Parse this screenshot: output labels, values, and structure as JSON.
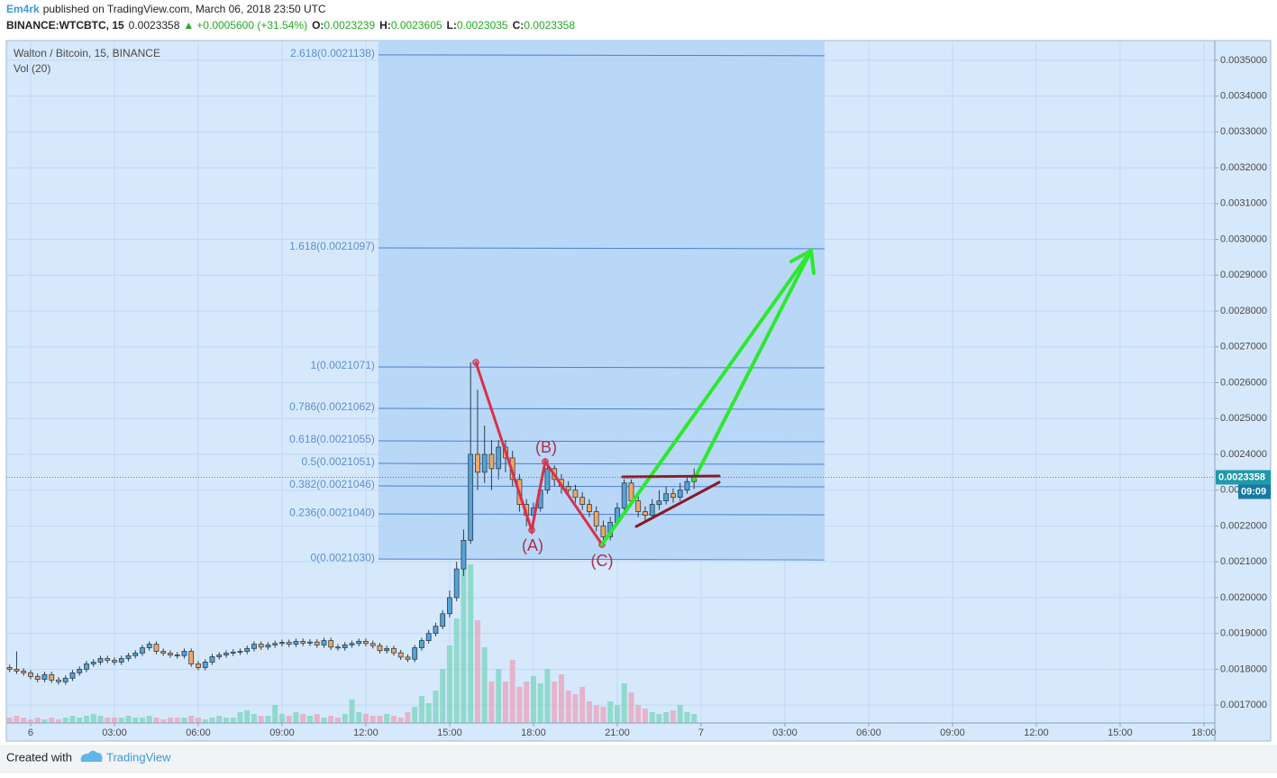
{
  "header": {
    "author": "Em4rk",
    "published": "published on TradingView.com, March 06, 2018 23:50 UTC",
    "symbol": "BINANCE:WTCBTC, 15",
    "last": "0.0023358",
    "change": "+0.0005600 (+31.54%)",
    "ohlc": [
      {
        "label": "O:",
        "value": "0.0023239"
      },
      {
        "label": "H:",
        "value": "0.0023605"
      },
      {
        "label": "L:",
        "value": "0.0023035"
      },
      {
        "label": "C:",
        "value": "0.0023358"
      }
    ]
  },
  "footer": {
    "created": "Created with",
    "brand": "TradingView"
  },
  "chart_data": {
    "type": "candlestick",
    "title": "Walton / Bitcoin, 15, BINANCE",
    "volume_label": "Vol (20)",
    "up_color": "#53a3d9",
    "down_color": "#f0a860",
    "volume_up_color": "#7fd4c1",
    "volume_down_color": "#eaa6bd",
    "x": [
      -0.75,
      -0.5,
      -0.25,
      0,
      0.25,
      0.5,
      0.75,
      1,
      1.25,
      1.5,
      1.75,
      2,
      2.25,
      2.5,
      2.75,
      3,
      3.25,
      3.5,
      3.75,
      4,
      4.25,
      4.5,
      4.75,
      5,
      5.25,
      5.5,
      5.75,
      6,
      6.25,
      6.5,
      6.75,
      7,
      7.25,
      7.5,
      7.75,
      8,
      8.25,
      8.5,
      8.75,
      9,
      9.25,
      9.5,
      9.75,
      10,
      10.25,
      10.5,
      10.75,
      11,
      11.25,
      11.5,
      11.75,
      12,
      12.25,
      12.5,
      12.75,
      13,
      13.25,
      13.5,
      13.75,
      14,
      14.25,
      14.5,
      14.75,
      15,
      15.25,
      15.5,
      15.75,
      16,
      16.25,
      16.5,
      16.75,
      17,
      17.25,
      17.5,
      17.75,
      18,
      18.25,
      18.5,
      18.75,
      19,
      19.25,
      19.5,
      19.75,
      20,
      20.25,
      20.5,
      20.75,
      21,
      21.25,
      21.5,
      21.75,
      22,
      22.25,
      22.5,
      22.75,
      23,
      23.25,
      23.5,
      23.75
    ],
    "open": [
      0.001805,
      0.0018,
      0.001795,
      0.00179,
      0.00178,
      0.001772,
      0.001785,
      0.00177,
      0.001765,
      0.001775,
      0.00179,
      0.0018,
      0.001815,
      0.00182,
      0.00183,
      0.001825,
      0.00182,
      0.00183,
      0.001838,
      0.001845,
      0.00186,
      0.00187,
      0.00185,
      0.001845,
      0.00184,
      0.001838,
      0.00185,
      0.001815,
      0.001805,
      0.00182,
      0.001835,
      0.00184,
      0.001845,
      0.001848,
      0.00185,
      0.001858,
      0.00187,
      0.001862,
      0.001868,
      0.001872,
      0.001875,
      0.00187,
      0.001878,
      0.001873,
      0.001876,
      0.001868,
      0.00188,
      0.001862,
      0.00186,
      0.001868,
      0.001872,
      0.001878,
      0.001872,
      0.001866,
      0.001852,
      0.001858,
      0.001846,
      0.001834,
      0.001828,
      0.00186,
      0.00188,
      0.0019,
      0.00192,
      0.001955,
      0.002,
      0.00208,
      0.00216,
      0.0024,
      0.00235,
      0.0024,
      0.00236,
      0.00242,
      0.00239,
      0.00233,
      0.00226,
      0.00223,
      0.00225,
      0.0023,
      0.00236,
      0.00233,
      0.00231,
      0.0023,
      0.00228,
      0.00226,
      0.00224,
      0.0022,
      0.00217,
      0.00221,
      0.00225,
      0.00232,
      0.00227,
      0.00224,
      0.00223,
      0.00226,
      0.00227,
      0.00229,
      0.00228,
      0.0023,
      0.0023239
    ],
    "high": [
      0.001813,
      0.00185,
      0.001803,
      0.001798,
      0.001788,
      0.001793,
      0.001793,
      0.001778,
      0.001783,
      0.001798,
      0.001808,
      0.001823,
      0.001828,
      0.001838,
      0.001838,
      0.001833,
      0.001838,
      0.001846,
      0.001853,
      0.001868,
      0.001878,
      0.001878,
      0.001858,
      0.001853,
      0.001848,
      0.001858,
      0.001858,
      0.001823,
      0.001828,
      0.001843,
      0.001848,
      0.001853,
      0.001856,
      0.001858,
      0.001866,
      0.001878,
      0.001878,
      0.001876,
      0.00188,
      0.001883,
      0.001883,
      0.001886,
      0.001886,
      0.001884,
      0.001884,
      0.001888,
      0.001888,
      0.00187,
      0.001876,
      0.00188,
      0.001886,
      0.001886,
      0.00188,
      0.001874,
      0.001866,
      0.001866,
      0.001854,
      0.001842,
      0.001868,
      0.001888,
      0.00191,
      0.00193,
      0.001965,
      0.00202,
      0.0021,
      0.00219,
      0.002657,
      0.00258,
      0.00248,
      0.00244,
      0.00244,
      0.00244,
      0.00241,
      0.002345,
      0.002275,
      0.002265,
      0.002315,
      0.00238,
      0.00237,
      0.002345,
      0.002325,
      0.002315,
      0.002295,
      0.002275,
      0.002255,
      0.002215,
      0.002225,
      0.002265,
      0.00233,
      0.00233,
      0.002285,
      0.002255,
      0.002275,
      0.0023,
      0.00231,
      0.002305,
      0.00232,
      0.002335,
      0.0023605
    ],
    "low": [
      0.001792,
      0.001787,
      0.001782,
      0.001772,
      0.001764,
      0.001764,
      0.001762,
      0.001757,
      0.001757,
      0.001767,
      0.001782,
      0.001792,
      0.001807,
      0.001812,
      0.001817,
      0.001812,
      0.001812,
      0.001822,
      0.00183,
      0.001837,
      0.001852,
      0.001842,
      0.001837,
      0.001832,
      0.00183,
      0.00183,
      0.001807,
      0.001797,
      0.001797,
      0.001812,
      0.001827,
      0.001832,
      0.001837,
      0.00184,
      0.001842,
      0.00185,
      0.001854,
      0.001854,
      0.00186,
      0.001864,
      0.001862,
      0.001862,
      0.001865,
      0.001865,
      0.00186,
      0.00186,
      0.001854,
      0.001852,
      0.001852,
      0.00186,
      0.001864,
      0.001864,
      0.001858,
      0.001844,
      0.001844,
      0.001838,
      0.001826,
      0.00182,
      0.00182,
      0.001852,
      0.001872,
      0.001892,
      0.001912,
      0.001945,
      0.00199,
      0.00206,
      0.00215,
      0.0023,
      0.00232,
      0.0023,
      0.00233,
      0.00235,
      0.00231,
      0.00224,
      0.0022,
      0.00219,
      0.00224,
      0.00229,
      0.00231,
      0.00229,
      0.002285,
      0.002265,
      0.002245,
      0.002225,
      0.002185,
      0.00215,
      0.00216,
      0.0022,
      0.00224,
      0.002255,
      0.002225,
      0.002215,
      0.00222,
      0.002245,
      0.00226,
      0.002265,
      0.00227,
      0.00229,
      0.0023035
    ],
    "close": [
      0.0018,
      0.001795,
      0.00179,
      0.00178,
      0.001772,
      0.001785,
      0.00177,
      0.001765,
      0.001775,
      0.00179,
      0.0018,
      0.001815,
      0.00182,
      0.00183,
      0.001825,
      0.00182,
      0.00183,
      0.001838,
      0.001845,
      0.00186,
      0.00187,
      0.00185,
      0.001845,
      0.00184,
      0.001838,
      0.00185,
      0.001815,
      0.001805,
      0.00182,
      0.001835,
      0.00184,
      0.001845,
      0.001848,
      0.00185,
      0.001858,
      0.00187,
      0.001862,
      0.001868,
      0.001872,
      0.001875,
      0.00187,
      0.001878,
      0.001873,
      0.001876,
      0.001868,
      0.00188,
      0.001862,
      0.00186,
      0.001868,
      0.001872,
      0.001878,
      0.001872,
      0.001866,
      0.001852,
      0.001858,
      0.001846,
      0.001834,
      0.001828,
      0.00186,
      0.00188,
      0.0019,
      0.00192,
      0.001955,
      0.002,
      0.00208,
      0.00216,
      0.0024,
      0.00235,
      0.0024,
      0.00236,
      0.00242,
      0.00239,
      0.00233,
      0.00226,
      0.00223,
      0.00225,
      0.0023,
      0.00236,
      0.00233,
      0.00231,
      0.0023,
      0.00228,
      0.00226,
      0.00224,
      0.0022,
      0.00217,
      0.00221,
      0.00225,
      0.00232,
      0.00227,
      0.00224,
      0.00223,
      0.00226,
      0.00227,
      0.00229,
      0.00228,
      0.0023,
      0.0023239,
      0.0023358
    ],
    "volume": [
      3,
      4,
      3,
      2,
      3,
      2,
      3,
      2,
      3,
      4,
      3,
      4,
      5,
      4,
      3,
      3,
      3,
      4,
      3,
      3,
      4,
      3,
      2,
      3,
      3,
      3,
      4,
      3,
      2,
      3,
      4,
      3,
      3,
      6,
      7,
      5,
      4,
      4,
      10,
      5,
      4,
      6,
      5,
      4,
      5,
      3,
      4,
      3,
      5,
      13,
      6,
      5,
      4,
      4,
      5,
      4,
      3,
      6,
      9,
      15,
      11,
      18,
      30,
      43,
      58,
      95,
      88,
      57,
      42,
      23,
      30,
      23,
      35,
      20,
      23,
      26,
      22,
      30,
      23,
      27,
      18,
      16,
      20,
      12,
      10,
      9,
      12,
      10,
      22,
      17,
      10,
      8,
      6,
      5,
      6,
      7,
      10,
      6,
      5
    ],
    "xlim": [
      -0.87,
      42.39
    ],
    "xticks": [
      {
        "value": 0,
        "label": "6"
      },
      {
        "value": 3,
        "label": "03:00"
      },
      {
        "value": 6,
        "label": "06:00"
      },
      {
        "value": 9,
        "label": "09:00"
      },
      {
        "value": 12,
        "label": "12:00"
      },
      {
        "value": 15,
        "label": "15:00"
      },
      {
        "value": 18,
        "label": "18:00"
      },
      {
        "value": 21,
        "label": "21:00"
      },
      {
        "value": 24,
        "label": "7"
      },
      {
        "value": 27,
        "label": "03:00"
      },
      {
        "value": 30,
        "label": "06:00"
      },
      {
        "value": 33,
        "label": "09:00"
      },
      {
        "value": 36,
        "label": "12:00"
      },
      {
        "value": 39,
        "label": "15:00"
      },
      {
        "value": 42,
        "label": "18:00"
      }
    ],
    "ylim": [
      0.00165,
      0.003555
    ],
    "yticks": [
      {
        "value": 0.0017,
        "label": "0.0017000"
      },
      {
        "value": 0.0018,
        "label": "0.0018000"
      },
      {
        "value": 0.0019,
        "label": "0.0019000"
      },
      {
        "value": 0.002,
        "label": "0.0020000"
      },
      {
        "value": 0.0021,
        "label": "0.0021000"
      },
      {
        "value": 0.0022,
        "label": "0.0022000"
      },
      {
        "value": 0.0023,
        "label": "0.0023000"
      },
      {
        "value": 0.0024,
        "label": "0.0024000"
      },
      {
        "value": 0.0025,
        "label": "0.0025000"
      },
      {
        "value": 0.0026,
        "label": "0.0026000"
      },
      {
        "value": 0.0027,
        "label": "0.0027000"
      },
      {
        "value": 0.0028,
        "label": "0.0028000"
      },
      {
        "value": 0.0029,
        "label": "0.0029000"
      },
      {
        "value": 0.003,
        "label": "0.0030000"
      },
      {
        "value": 0.0031,
        "label": "0.0031000"
      },
      {
        "value": 0.0032,
        "label": "0.0032000"
      },
      {
        "value": 0.0033,
        "label": "0.0033000"
      },
      {
        "value": 0.0034,
        "label": "0.0034000"
      },
      {
        "value": 0.0035,
        "label": "0.0035000"
      }
    ],
    "grid": true,
    "last_price": 0.0023358,
    "countdown": "09:09",
    "fib": {
      "x": [
        12.45,
        28.42
      ],
      "color": "#4f7fd0",
      "levels": [
        {
          "value": 0.0035151,
          "label": "2.618(0.0021138)"
        },
        {
          "value": 0.0029763,
          "label": "1.618(0.0021097)"
        },
        {
          "value": 0.002644,
          "label": "1(0.0021071)"
        },
        {
          "value": 0.0025282,
          "label": "0.786(0.0021062)"
        },
        {
          "value": 0.0024376,
          "label": "0.618(0.0021055)"
        },
        {
          "value": 0.0023746,
          "label": "0.5(0.0021051)"
        },
        {
          "value": 0.0023117,
          "label": "0.382(0.0021046)"
        },
        {
          "value": 0.0022336,
          "label": "0.236(0.0021040)"
        },
        {
          "value": 0.0021078,
          "label": "0(0.0021030)"
        }
      ]
    },
    "annotations": [
      "(A)",
      "(B)",
      "(C)"
    ]
  }
}
